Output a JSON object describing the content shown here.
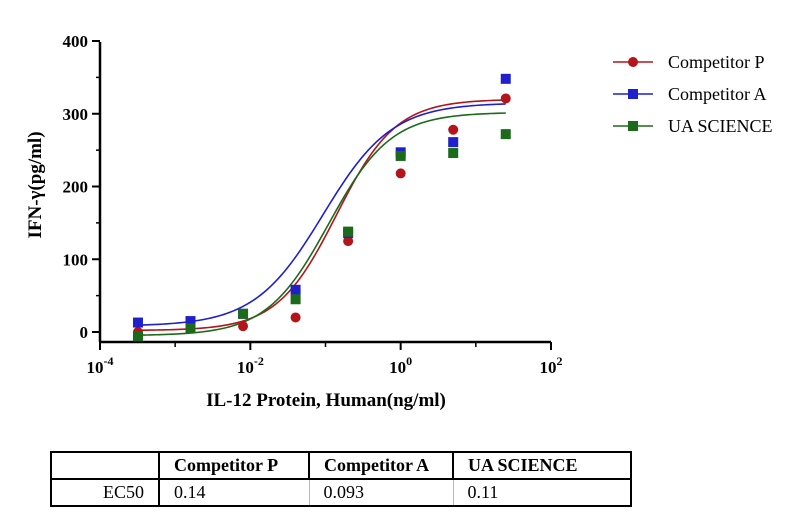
{
  "chart_data": {
    "type": "scatter",
    "xlabel": "IL-12 Protein, Human(ng/ml)",
    "ylabel": "IFN-γ(pg/ml)",
    "x_scale": "log",
    "xlim": [
      0.0001,
      100
    ],
    "ylim": [
      0,
      400
    ],
    "x_ticks": [
      {
        "value": 0.0001,
        "base": "10",
        "exp": "-4"
      },
      {
        "value": 0.01,
        "base": "10",
        "exp": "-2"
      },
      {
        "value": 1,
        "base": "10",
        "exp": "0"
      },
      {
        "value": 100,
        "base": "10",
        "exp": "2"
      }
    ],
    "y_ticks": [
      0,
      100,
      200,
      300,
      400
    ],
    "legend_position": "top-right",
    "series": [
      {
        "name": "Competitor P",
        "color": "#b3151b",
        "marker": "circle",
        "x": [
          0.00032,
          0.0016,
          0.008,
          0.04,
          0.2,
          1,
          5,
          25
        ],
        "y": [
          0,
          5,
          8,
          20,
          125,
          218,
          278,
          321
        ],
        "fit": {
          "bottom": 2,
          "top": 320,
          "ec50": 0.14,
          "hill": 1.1
        }
      },
      {
        "name": "Competitor A",
        "color": "#1f1fcc",
        "marker": "square",
        "x": [
          0.00032,
          0.0016,
          0.008,
          0.04,
          0.2,
          1,
          5,
          25
        ],
        "y": [
          13,
          15,
          25,
          58,
          136,
          247,
          261,
          348
        ],
        "fit": {
          "bottom": 8,
          "top": 315,
          "ec50": 0.093,
          "hill": 0.95
        }
      },
      {
        "name": "UA SCIENCE",
        "color": "#1b6b1b",
        "marker": "square",
        "x": [
          0.00032,
          0.0016,
          0.008,
          0.04,
          0.2,
          1,
          5,
          25
        ],
        "y": [
          -6,
          5,
          25,
          45,
          138,
          242,
          246,
          272
        ],
        "fit": {
          "bottom": -5,
          "top": 302,
          "ec50": 0.11,
          "hill": 1.05
        }
      }
    ]
  },
  "ec50_table": {
    "headers": [
      "",
      "Competitor P",
      "Competitor A",
      "UA SCIENCE"
    ],
    "row_label": "EC50",
    "values": [
      "0.14",
      "0.093",
      "0.11"
    ]
  }
}
